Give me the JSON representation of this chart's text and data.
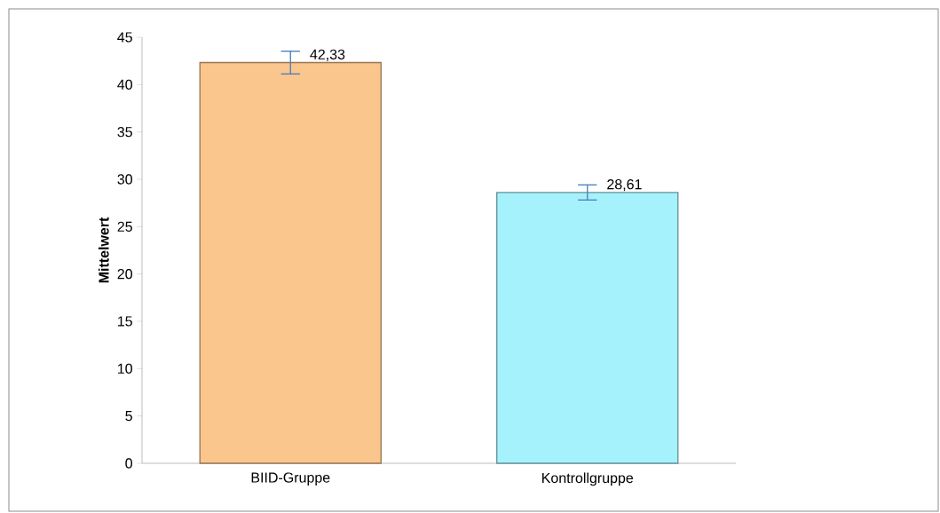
{
  "chart_data": {
    "type": "bar",
    "ylabel": "Mittelwert",
    "categories": [
      "BIID-Gruppe",
      "Kontrollgruppe"
    ],
    "values": [
      42.33,
      28.61
    ],
    "errors": [
      1.2,
      0.8
    ],
    "value_labels": [
      "42,33",
      "28,61"
    ],
    "colors": [
      "#fbc58e",
      "#a6f2fc"
    ],
    "ylim": [
      0,
      45
    ],
    "yticks": [
      0,
      5,
      10,
      15,
      20,
      25,
      30,
      35,
      40,
      45
    ]
  }
}
